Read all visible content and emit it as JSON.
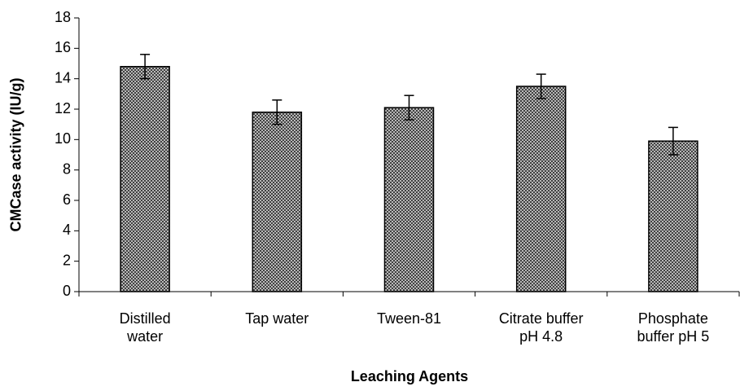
{
  "chart_data": {
    "type": "bar",
    "x_label": "Leaching Agents",
    "y_label": "CMCase activity (IU/g)",
    "categories": [
      "Distilled\nwater",
      "Tap water",
      "Tween-81",
      "Citrate buffer\npH 4.8",
      "Phosphate\nbuffer pH 5"
    ],
    "values": [
      14.8,
      11.8,
      12.1,
      13.5,
      9.9
    ],
    "errors": [
      0.8,
      0.8,
      0.8,
      0.8,
      0.9
    ],
    "color": "#8c8c8c",
    "ylim": [
      0,
      18
    ],
    "yticks": [
      0,
      2,
      4,
      6,
      8,
      10,
      12,
      14,
      16,
      18
    ],
    "grid": false
  }
}
